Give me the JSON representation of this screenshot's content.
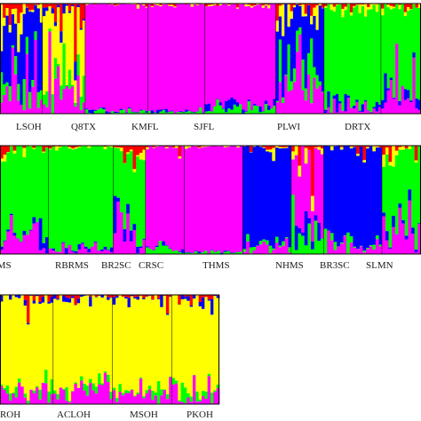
{
  "chart_data": {
    "type": "bar",
    "stacked": true,
    "normalized": true,
    "ylim": [
      0,
      1
    ],
    "title": "",
    "xlabel": "",
    "ylabel": "",
    "clusters": [
      {
        "name": "",
        "color": "#ff00ff"
      },
      {
        "name": "",
        "color": "#00ff00"
      },
      {
        "name": "",
        "color": "#0000ff"
      },
      {
        "name": "",
        "color": "#ffff00"
      },
      {
        "name": "",
        "color": "#ff0000"
      }
    ],
    "panels": [
      {
        "populations": [
          {
            "label": "",
            "individuals": 15,
            "dominant": 2,
            "admixture": 0.55
          },
          {
            "label": "LSOH",
            "individuals": 15,
            "dominant": 3,
            "admixture": 0.5
          },
          {
            "label": "Q8TX",
            "individuals": 22,
            "dominant": 0,
            "admixture": 0.04
          },
          {
            "label": "KMFL",
            "individuals": 20,
            "dominant": 0,
            "admixture": 0.04
          },
          {
            "label": "SJFL",
            "individuals": 25,
            "dominant": 0,
            "admixture": 0.1
          },
          {
            "label": "PLWI",
            "individuals": 17,
            "dominant": 2,
            "admixture": 0.6
          },
          {
            "label": "DRTX",
            "individuals": 20,
            "dominant": 1,
            "admixture": 0.15
          },
          {
            "label": "",
            "individuals": 14,
            "dominant": 1,
            "admixture": 0.4
          }
        ]
      },
      {
        "populations": [
          {
            "label": "LMS",
            "individuals": 15,
            "dominant": 1,
            "admixture": 0.25
          },
          {
            "label": "RBRMS",
            "individuals": 20,
            "dominant": 1,
            "admixture": 0.08
          },
          {
            "label": "BR2SC",
            "individuals": 10,
            "dominant": 1,
            "admixture": 0.35
          },
          {
            "label": "CRSC",
            "individuals": 12,
            "dominant": 0,
            "admixture": 0.1
          },
          {
            "label": "THMS",
            "individuals": 18,
            "dominant": 0,
            "admixture": 0.03
          },
          {
            "label": "NHMS",
            "individuals": 15,
            "dominant": 2,
            "admixture": 0.12
          },
          {
            "label": "BR3SC",
            "individuals": 10,
            "dominant": 0,
            "admixture": 0.5
          },
          {
            "label": "SLMN",
            "individuals": 18,
            "dominant": 2,
            "admixture": 0.15
          },
          {
            "label": "",
            "individuals": 12,
            "dominant": 1,
            "admixture": 0.4
          }
        ]
      },
      {
        "populations": [
          {
            "label": "NROH",
            "individuals": 18,
            "dominant": 3,
            "admixture": 0.2
          },
          {
            "label": "ACLOH",
            "individuals": 20,
            "dominant": 3,
            "admixture": 0.22
          },
          {
            "label": "MSOH",
            "individuals": 20,
            "dominant": 3,
            "admixture": 0.18
          },
          {
            "label": "PKOH",
            "individuals": 16,
            "dominant": 3,
            "admixture": 0.22
          }
        ]
      }
    ]
  }
}
